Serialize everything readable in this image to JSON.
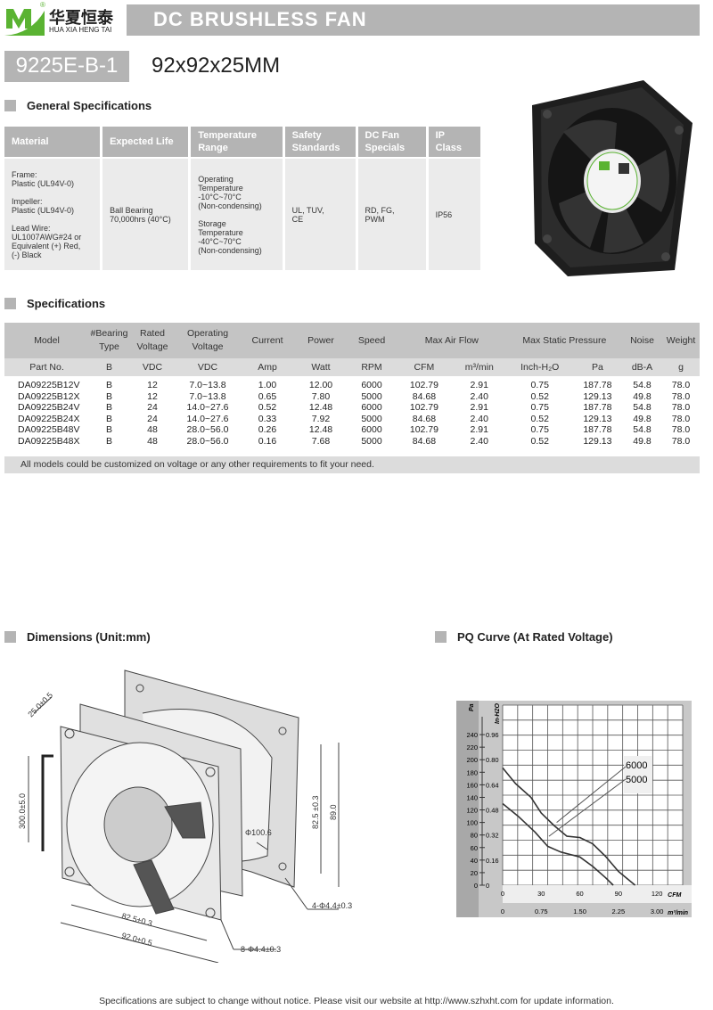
{
  "brand": {
    "name_cn": "华夏恒泰",
    "name_en": "HUA XIA HENG TAI",
    "logo_letter": "M",
    "registered": "®",
    "color": "#5ab332"
  },
  "header": {
    "title": "DC BRUSHLESS FAN",
    "model": "9225E-B-1",
    "size": "92x92x25MM"
  },
  "general": {
    "heading": "General Specifications",
    "columns": [
      "Material",
      "Expected Life",
      "Temperature Range",
      "Safety Standards",
      "DC Fan Specials",
      "IP Class"
    ],
    "material": [
      "Frame:",
      "Plastic (UL94V-0)",
      "",
      "Impeller:",
      "Plastic (UL94V-0)",
      "",
      "Lead Wire:",
      "UL1007AWG#24 or",
      "Equivalent (+) Red,",
      "(-) Black"
    ],
    "life": [
      "Ball Bearing",
      "70,000hrs (40°C)"
    ],
    "temp": [
      "Operating",
      "Temperature",
      "-10°C~70°C",
      "(Non-condensing)",
      "",
      "Storage",
      "Temperature",
      "-40°C~70°C",
      "(Non-condensing)"
    ],
    "safety": [
      "UL, TUV,",
      "CE"
    ],
    "specials": [
      "RD, FG,",
      "PWM"
    ],
    "ip": "IP56"
  },
  "specs": {
    "heading": "Specifications",
    "header1": [
      "Model",
      "#Bearing Type",
      "Rated Voltage",
      "Operating Voltage",
      "Current",
      "Power",
      "Speed",
      "Max  Air  Flow",
      "Max Static  Pressure",
      "Noise",
      "Weight"
    ],
    "header2": [
      "Part No.",
      "B",
      "VDC",
      "VDC",
      "Amp",
      "Watt",
      "RPM",
      "CFM",
      "m³/min",
      "Inch-H₂O",
      "Pa",
      "dB-A",
      "g"
    ],
    "rows": [
      [
        "DA09225B12V",
        "B",
        "12",
        "7.0~13.8",
        "1.00",
        "12.00",
        "6000",
        "102.79",
        "2.91",
        "0.75",
        "187.78",
        "54.8",
        "78.0"
      ],
      [
        "DA09225B12X",
        "B",
        "12",
        "7.0~13.8",
        "0.65",
        "7.80",
        "5000",
        "84.68",
        "2.40",
        "0.52",
        "129.13",
        "49.8",
        "78.0"
      ],
      [
        "DA09225B24V",
        "B",
        "24",
        "14.0~27.6",
        "0.52",
        "12.48",
        "6000",
        "102.79",
        "2.91",
        "0.75",
        "187.78",
        "54.8",
        "78.0"
      ],
      [
        "DA09225B24X",
        "B",
        "24",
        "14.0~27.6",
        "0.33",
        "7.92",
        "5000",
        "84.68",
        "2.40",
        "0.52",
        "129.13",
        "49.8",
        "78.0"
      ],
      [
        "DA09225B48V",
        "B",
        "48",
        "28.0~56.0",
        "0.26",
        "12.48",
        "6000",
        "102.79",
        "2.91",
        "0.75",
        "187.78",
        "54.8",
        "78.0"
      ],
      [
        "DA09225B48X",
        "B",
        "48",
        "28.0~56.0",
        "0.16",
        "7.68",
        "5000",
        "84.68",
        "2.40",
        "0.52",
        "129.13",
        "49.8",
        "78.0"
      ]
    ],
    "note": "All models could be customized on voltage or any other requirements to fit your need."
  },
  "dimensions": {
    "heading": "Dimensions (Unit:mm)",
    "labels": {
      "depth": "25.0±0.5",
      "lead": "300.0±5.0",
      "hole_pitch_v": "82.5 ±0.3",
      "height": "89.0",
      "diameter": "Φ100.6",
      "holes_back": "4-Φ4.4±0.3",
      "hole_pitch_h": "82.5±0.3",
      "width": "92.0±0.5",
      "holes_front": "8-Φ4.4±0.3"
    }
  },
  "pq": {
    "heading": "PQ Curve (At Rated Voltage)"
  },
  "chart_data": {
    "type": "line",
    "title": "PQ Curve (At Rated Voltage)",
    "xlabel": "CFM",
    "xlabel2": "m³/min",
    "ylabel": "Pa",
    "ylabel2": "In-H2O",
    "xlim": [
      0,
      140
    ],
    "ylim": [
      0,
      260
    ],
    "xticks": [
      0,
      30,
      60,
      90,
      120
    ],
    "xticks2": [
      "0",
      "0.75",
      "1.50",
      "2.25",
      "3.00"
    ],
    "yticks": [
      0,
      20,
      40,
      60,
      80,
      100,
      120,
      140,
      160,
      180,
      200,
      220,
      240
    ],
    "yticks2": {
      "0": "0",
      "40": "0.16",
      "80": "0.32",
      "120": "0.48",
      "160": "0.64",
      "200": "0.80",
      "240": "0.96"
    },
    "grid": true,
    "series": [
      {
        "name": "6000",
        "x": [
          0,
          10,
          22,
          30,
          40,
          50,
          60,
          70,
          80,
          90,
          103
        ],
        "y": [
          187,
          162,
          140,
          115,
          95,
          78,
          76,
          66,
          46,
          22,
          0
        ]
      },
      {
        "name": "5000",
        "x": [
          0,
          12,
          25,
          35,
          45,
          60,
          70,
          80,
          86
        ],
        "y": [
          130,
          110,
          85,
          62,
          53,
          45,
          30,
          12,
          0
        ]
      }
    ]
  },
  "footer": "Specifications are subject to change without notice. Please visit our website at http://www.szhxht.com for update information."
}
